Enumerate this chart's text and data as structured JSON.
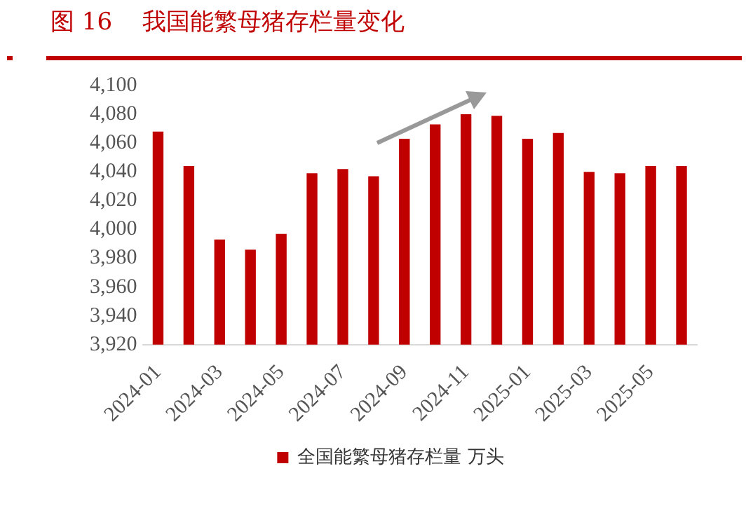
{
  "chart_data": {
    "type": "bar",
    "title": "图 16    我国能繁母猪存栏量变化",
    "categories": [
      "2024-01",
      null,
      "2024-03",
      null,
      "2024-05",
      null,
      "2024-07",
      null,
      "2024-09",
      null,
      "2024-11",
      null,
      "2025-01",
      null,
      "2025-03",
      null,
      "2025-05",
      null
    ],
    "series": [
      {
        "name": "全国能繁母猪存栏量 万头",
        "color": "#c00000",
        "values": [
          4068,
          4044,
          3993,
          3986,
          3997,
          4039,
          4042,
          4037,
          4063,
          4073,
          4080,
          4079,
          4063,
          4067,
          4040,
          4039,
          4044,
          4044
        ]
      }
    ],
    "ylim": [
      3920,
      4100
    ],
    "yticks": [
      {
        "value": 3920,
        "label": "3,920"
      },
      {
        "value": 3940,
        "label": "3,940"
      },
      {
        "value": 3960,
        "label": "3,960"
      },
      {
        "value": 3980,
        "label": "3,980"
      },
      {
        "value": 4000,
        "label": "4,000"
      },
      {
        "value": 4020,
        "label": "4,020"
      },
      {
        "value": 4040,
        "label": "4,040"
      },
      {
        "value": 4060,
        "label": "4,060"
      },
      {
        "value": 4080,
        "label": "4,080"
      },
      {
        "value": 4100,
        "label": "4,100"
      }
    ],
    "grid": false,
    "legend": "bottom"
  }
}
